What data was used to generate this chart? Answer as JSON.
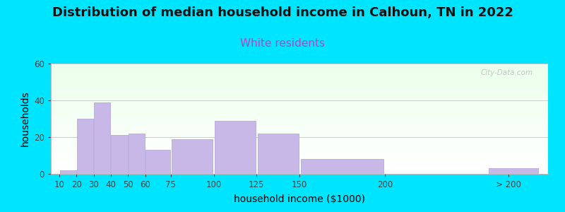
{
  "title": "Distribution of median household income in Calhoun, TN in 2022",
  "subtitle": "White residents",
  "xlabel": "household income ($1000)",
  "ylabel": "households",
  "title_fontsize": 13,
  "subtitle_fontsize": 11,
  "subtitle_color": "#bb44bb",
  "bar_color": "#c8b8e8",
  "bar_edge_color": "#b0a0d8",
  "background_outer": "#00e5ff",
  "ylim": [
    0,
    60
  ],
  "yticks": [
    0,
    20,
    40,
    60
  ],
  "bar_lefts": [
    10,
    20,
    30,
    40,
    50,
    60,
    75,
    100,
    125,
    150,
    230,
    260
  ],
  "bar_widths": [
    10,
    10,
    10,
    10,
    10,
    15,
    25,
    25,
    25,
    50,
    20,
    30
  ],
  "bar_heights": [
    2,
    30,
    39,
    21,
    22,
    13,
    19,
    29,
    22,
    8,
    0,
    3
  ],
  "xtick_positions": [
    10,
    20,
    30,
    40,
    50,
    60,
    75,
    100,
    125,
    150,
    200,
    272
  ],
  "xtick_labels": [
    "10",
    "20",
    "30",
    "40",
    "50",
    "60",
    "75",
    "100",
    "125",
    "150",
    "200",
    "> 200"
  ],
  "watermark": "City-Data.com"
}
